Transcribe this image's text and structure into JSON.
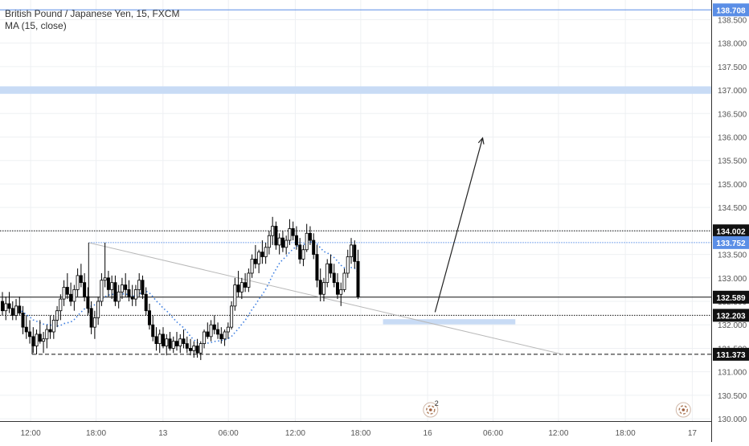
{
  "legend": {
    "symbol": "British Pound / Japanese Yen, 15, FXCM",
    "indicator": "MA (15, close)"
  },
  "colors": {
    "up": "#ffffff",
    "down": "#000000",
    "wick": "#000000",
    "ma": "#3d7ee0",
    "grid": "#eef0f3",
    "zone": "#c8dbf5",
    "axis": "#555555",
    "price_highlight": "#5a8ee6",
    "price_black": "#111111"
  },
  "markers": [
    {
      "label": "2",
      "icon": "event-marker-icon",
      "x_index": 288
    },
    {
      "label": "",
      "icon": "event-marker-icon",
      "x_index": 458
    }
  ],
  "chart_data": {
    "type": "candlestick",
    "x_ticks": [
      {
        "label": "12:00",
        "index": 19
      },
      {
        "label": "18:00",
        "index": 63
      },
      {
        "label": "13",
        "index": 108
      },
      {
        "label": "06:00",
        "index": 152
      },
      {
        "label": "12:00",
        "index": 197
      },
      {
        "label": "18:00",
        "index": 241
      },
      {
        "label": "16",
        "index": 286
      },
      {
        "label": "06:00",
        "index": 330
      },
      {
        "label": "12:00",
        "index": 374
      },
      {
        "label": "18:00",
        "index": 419
      },
      {
        "label": "17",
        "index": 464
      }
    ],
    "y_ticks": [
      "130.000",
      "130.500",
      "131.000",
      "131.500",
      "132.000",
      "132.500",
      "133.000",
      "133.500",
      "134.000",
      "134.500",
      "135.000",
      "135.500",
      "136.000",
      "136.500",
      "137.000",
      "137.500",
      "138.000",
      "138.500"
    ],
    "ylim": [
      129.95,
      138.85
    ],
    "horizontal_lines": [
      {
        "value": 138.708,
        "label": "138.708",
        "style": "solid-blue"
      },
      {
        "value": 134.002,
        "label": "134.002",
        "style": "dotted-black"
      },
      {
        "value": 133.752,
        "label": "133.752",
        "style": "dotted-blue"
      },
      {
        "value": 132.589,
        "label": "132.589",
        "style": "solid-black"
      },
      {
        "value": 132.203,
        "label": "132.203",
        "style": "dotted-black"
      },
      {
        "value": 131.373,
        "label": "131.373",
        "style": "dashed-black"
      }
    ],
    "zones": [
      {
        "x_start": -3,
        "x_end": 485,
        "y_low": 136.92,
        "y_high": 137.08
      },
      {
        "x_start": 256,
        "x_end": 345,
        "y_low": 132.01,
        "y_high": 132.12
      }
    ],
    "trendline": {
      "x": [
        58,
        377
      ],
      "y": [
        133.75,
        131.37
      ]
    },
    "arrow": {
      "x": [
        291,
        323
      ],
      "y": [
        132.27,
        135.98
      ]
    },
    "ohlc": [
      [
        132.5,
        132.7,
        132.2,
        132.3
      ],
      [
        132.3,
        132.6,
        132.1,
        132.45
      ],
      [
        132.45,
        132.7,
        132.25,
        132.35
      ],
      [
        132.35,
        132.5,
        132.1,
        132.2
      ],
      [
        132.2,
        132.55,
        132.1,
        132.4
      ],
      [
        132.4,
        132.6,
        132.2,
        132.25
      ],
      [
        132.25,
        132.4,
        131.8,
        131.95
      ],
      [
        131.95,
        132.2,
        131.7,
        131.85
      ],
      [
        131.85,
        132.1,
        131.6,
        131.75
      ],
      [
        131.75,
        131.95,
        131.4,
        131.55
      ],
      [
        131.55,
        131.9,
        131.37,
        131.8
      ],
      [
        131.8,
        132.1,
        131.6,
        131.65
      ],
      [
        131.65,
        131.85,
        131.4,
        131.7
      ],
      [
        131.7,
        132.0,
        131.5,
        131.9
      ],
      [
        131.9,
        132.2,
        131.7,
        131.85
      ],
      [
        131.85,
        132.2,
        131.7,
        132.1
      ],
      [
        132.1,
        132.4,
        131.95,
        132.3
      ],
      [
        132.3,
        132.65,
        132.1,
        132.55
      ],
      [
        132.55,
        132.95,
        132.4,
        132.8
      ],
      [
        132.8,
        133.1,
        132.55,
        132.65
      ],
      [
        132.65,
        132.9,
        132.4,
        132.5
      ],
      [
        132.5,
        132.85,
        132.3,
        132.75
      ],
      [
        132.75,
        133.2,
        132.6,
        133.05
      ],
      [
        133.05,
        133.3,
        132.8,
        132.9
      ],
      [
        132.9,
        133.1,
        132.5,
        132.6
      ],
      [
        132.6,
        132.8,
        132.2,
        132.35
      ],
      [
        132.35,
        132.5,
        131.8,
        131.95
      ],
      [
        131.95,
        132.3,
        131.7,
        132.15
      ],
      [
        132.15,
        132.6,
        132.0,
        132.5
      ],
      [
        132.5,
        133.1,
        132.4,
        132.95
      ],
      [
        132.95,
        133.75,
        132.8,
        133.0
      ],
      [
        133.0,
        133.15,
        132.6,
        132.75
      ],
      [
        132.75,
        133.05,
        132.55,
        132.9
      ],
      [
        132.9,
        133.05,
        132.4,
        132.5
      ],
      [
        132.5,
        132.85,
        132.35,
        132.7
      ],
      [
        132.7,
        133.0,
        132.55,
        132.85
      ],
      [
        132.85,
        133.1,
        132.6,
        132.75
      ],
      [
        132.75,
        132.95,
        132.5,
        132.6
      ],
      [
        132.6,
        132.85,
        132.4,
        132.55
      ],
      [
        132.55,
        132.85,
        132.4,
        132.75
      ],
      [
        132.75,
        133.1,
        132.6,
        132.95
      ],
      [
        132.95,
        133.05,
        132.55,
        132.65
      ],
      [
        132.65,
        132.8,
        132.2,
        132.3
      ],
      [
        132.3,
        132.45,
        131.9,
        132.0
      ],
      [
        132.0,
        132.2,
        131.65,
        131.75
      ],
      [
        131.75,
        131.95,
        131.45,
        131.6
      ],
      [
        131.6,
        131.9,
        131.4,
        131.8
      ],
      [
        131.8,
        131.95,
        131.5,
        131.55
      ],
      [
        131.55,
        131.8,
        131.35,
        131.7
      ],
      [
        131.7,
        131.85,
        131.45,
        131.5
      ],
      [
        131.5,
        131.75,
        131.4,
        131.65
      ],
      [
        131.65,
        131.85,
        131.45,
        131.55
      ],
      [
        131.55,
        131.8,
        131.4,
        131.7
      ],
      [
        131.7,
        131.9,
        131.5,
        131.6
      ],
      [
        131.6,
        131.75,
        131.4,
        131.5
      ],
      [
        131.5,
        131.7,
        131.35,
        131.45
      ],
      [
        131.45,
        131.65,
        131.3,
        131.55
      ],
      [
        131.55,
        131.7,
        131.3,
        131.4
      ],
      [
        131.4,
        131.65,
        131.25,
        131.6
      ],
      [
        131.6,
        131.9,
        131.5,
        131.85
      ],
      [
        131.85,
        132.05,
        131.7,
        131.75
      ],
      [
        131.75,
        132.1,
        131.65,
        132.0
      ],
      [
        132.0,
        132.2,
        131.8,
        131.9
      ],
      [
        131.9,
        132.05,
        131.7,
        131.8
      ],
      [
        131.8,
        131.95,
        131.6,
        131.7
      ],
      [
        131.7,
        131.9,
        131.55,
        131.85
      ],
      [
        131.85,
        132.05,
        131.7,
        131.95
      ],
      [
        131.95,
        132.5,
        131.9,
        132.4
      ],
      [
        132.4,
        133.0,
        132.3,
        132.85
      ],
      [
        132.85,
        133.15,
        132.6,
        132.7
      ],
      [
        132.7,
        133.0,
        132.55,
        132.9
      ],
      [
        132.9,
        133.1,
        132.7,
        132.8
      ],
      [
        132.8,
        133.2,
        132.7,
        133.1
      ],
      [
        133.1,
        133.5,
        133.0,
        133.4
      ],
      [
        133.4,
        133.7,
        133.2,
        133.3
      ],
      [
        133.3,
        133.6,
        133.1,
        133.55
      ],
      [
        133.55,
        133.8,
        133.3,
        133.45
      ],
      [
        133.45,
        133.75,
        133.3,
        133.65
      ],
      [
        133.65,
        134.0,
        133.5,
        133.9
      ],
      [
        133.9,
        134.3,
        133.7,
        134.1
      ],
      [
        134.1,
        134.2,
        133.6,
        133.7
      ],
      [
        133.7,
        133.95,
        133.5,
        133.85
      ],
      [
        133.85,
        134.0,
        133.55,
        133.65
      ],
      [
        133.65,
        133.9,
        133.5,
        133.8
      ],
      [
        133.8,
        134.25,
        133.7,
        134.05
      ],
      [
        134.05,
        134.2,
        133.8,
        133.9
      ],
      [
        133.9,
        134.1,
        133.6,
        133.7
      ],
      [
        133.7,
        133.85,
        133.3,
        133.4
      ],
      [
        133.4,
        133.7,
        133.25,
        133.6
      ],
      [
        133.6,
        134.15,
        133.55,
        133.95
      ],
      [
        133.95,
        134.1,
        133.7,
        133.8
      ],
      [
        133.8,
        133.95,
        133.4,
        133.5
      ],
      [
        133.5,
        133.7,
        132.8,
        132.95
      ],
      [
        132.95,
        133.2,
        132.5,
        132.65
      ],
      [
        132.65,
        133.0,
        132.5,
        132.9
      ],
      [
        132.9,
        133.4,
        132.8,
        133.3
      ],
      [
        133.3,
        133.5,
        133.0,
        133.1
      ],
      [
        133.1,
        133.3,
        132.8,
        132.9
      ],
      [
        132.9,
        133.1,
        132.55,
        132.65
      ],
      [
        132.65,
        132.9,
        132.4,
        132.75
      ],
      [
        132.75,
        133.2,
        132.7,
        133.1
      ],
      [
        133.1,
        133.6,
        133.0,
        133.45
      ],
      [
        133.45,
        133.85,
        133.3,
        133.7
      ],
      [
        133.7,
        133.8,
        133.2,
        133.35
      ],
      [
        133.35,
        133.6,
        132.55,
        132.6
      ]
    ],
    "ohlc_start_index": 0,
    "ohlc_step": 2.3,
    "ma_period": 15
  }
}
